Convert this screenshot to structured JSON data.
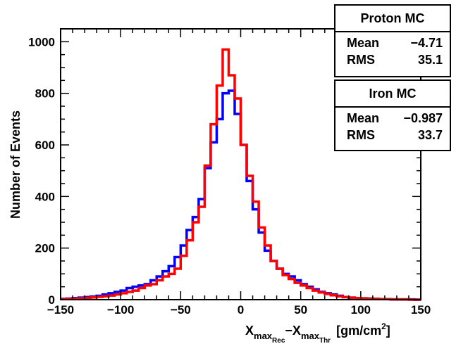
{
  "chart_data": {
    "type": "histogram",
    "xlabel": {
      "main1": "X",
      "sub1": "max",
      "subsub1": "Rec",
      "minus": "−",
      "main2": "X",
      "sub2": "max",
      "subsub2": "Thr",
      "unit_open": "[gm/cm",
      "unit_sup": "2",
      "unit_close": "]"
    },
    "ylabel": "Number of Events",
    "xlim": [
      -150,
      150
    ],
    "ylim": [
      0,
      1050
    ],
    "x_ticks": [
      "−150",
      "−100",
      "−50",
      "0",
      "50",
      "100",
      "150"
    ],
    "y_ticks": [
      "0",
      "200",
      "400",
      "600",
      "800",
      "1000"
    ],
    "bin_width": 5,
    "series": [
      {
        "name": "Proton MC",
        "color": "#0000ff",
        "bin_edges_start": -150,
        "values": [
          3,
          4,
          6,
          8,
          10,
          12,
          15,
          20,
          25,
          30,
          35,
          45,
          50,
          55,
          60,
          75,
          90,
          110,
          130,
          165,
          210,
          270,
          320,
          390,
          510,
          610,
          700,
          800,
          810,
          720,
          600,
          460,
          350,
          260,
          190,
          150,
          120,
          100,
          90,
          75,
          60,
          50,
          40,
          30,
          25,
          20,
          15,
          10,
          8,
          6,
          5,
          4,
          3,
          2,
          2,
          1,
          1,
          1,
          1,
          0
        ]
      },
      {
        "name": "Iron MC",
        "color": "#ff0000",
        "bin_edges_start": -150,
        "values": [
          2,
          3,
          4,
          5,
          7,
          9,
          11,
          13,
          16,
          20,
          25,
          30,
          35,
          45,
          55,
          60,
          75,
          90,
          100,
          120,
          170,
          230,
          300,
          360,
          520,
          680,
          830,
          970,
          870,
          780,
          600,
          480,
          380,
          280,
          210,
          150,
          120,
          95,
          80,
          65,
          55,
          45,
          35,
          28,
          22,
          17,
          13,
          10,
          8,
          6,
          5,
          4,
          3,
          2,
          2,
          1,
          1,
          1,
          0,
          0
        ]
      }
    ]
  },
  "stats": [
    {
      "title": "Proton MC",
      "rows": [
        {
          "label": "Mean",
          "value": "−4.71"
        },
        {
          "label": "RMS",
          "value": "35.1"
        }
      ]
    },
    {
      "title": "Iron MC",
      "rows": [
        {
          "label": "Mean",
          "value": "−0.987"
        },
        {
          "label": "RMS",
          "value": "33.7"
        }
      ]
    }
  ]
}
